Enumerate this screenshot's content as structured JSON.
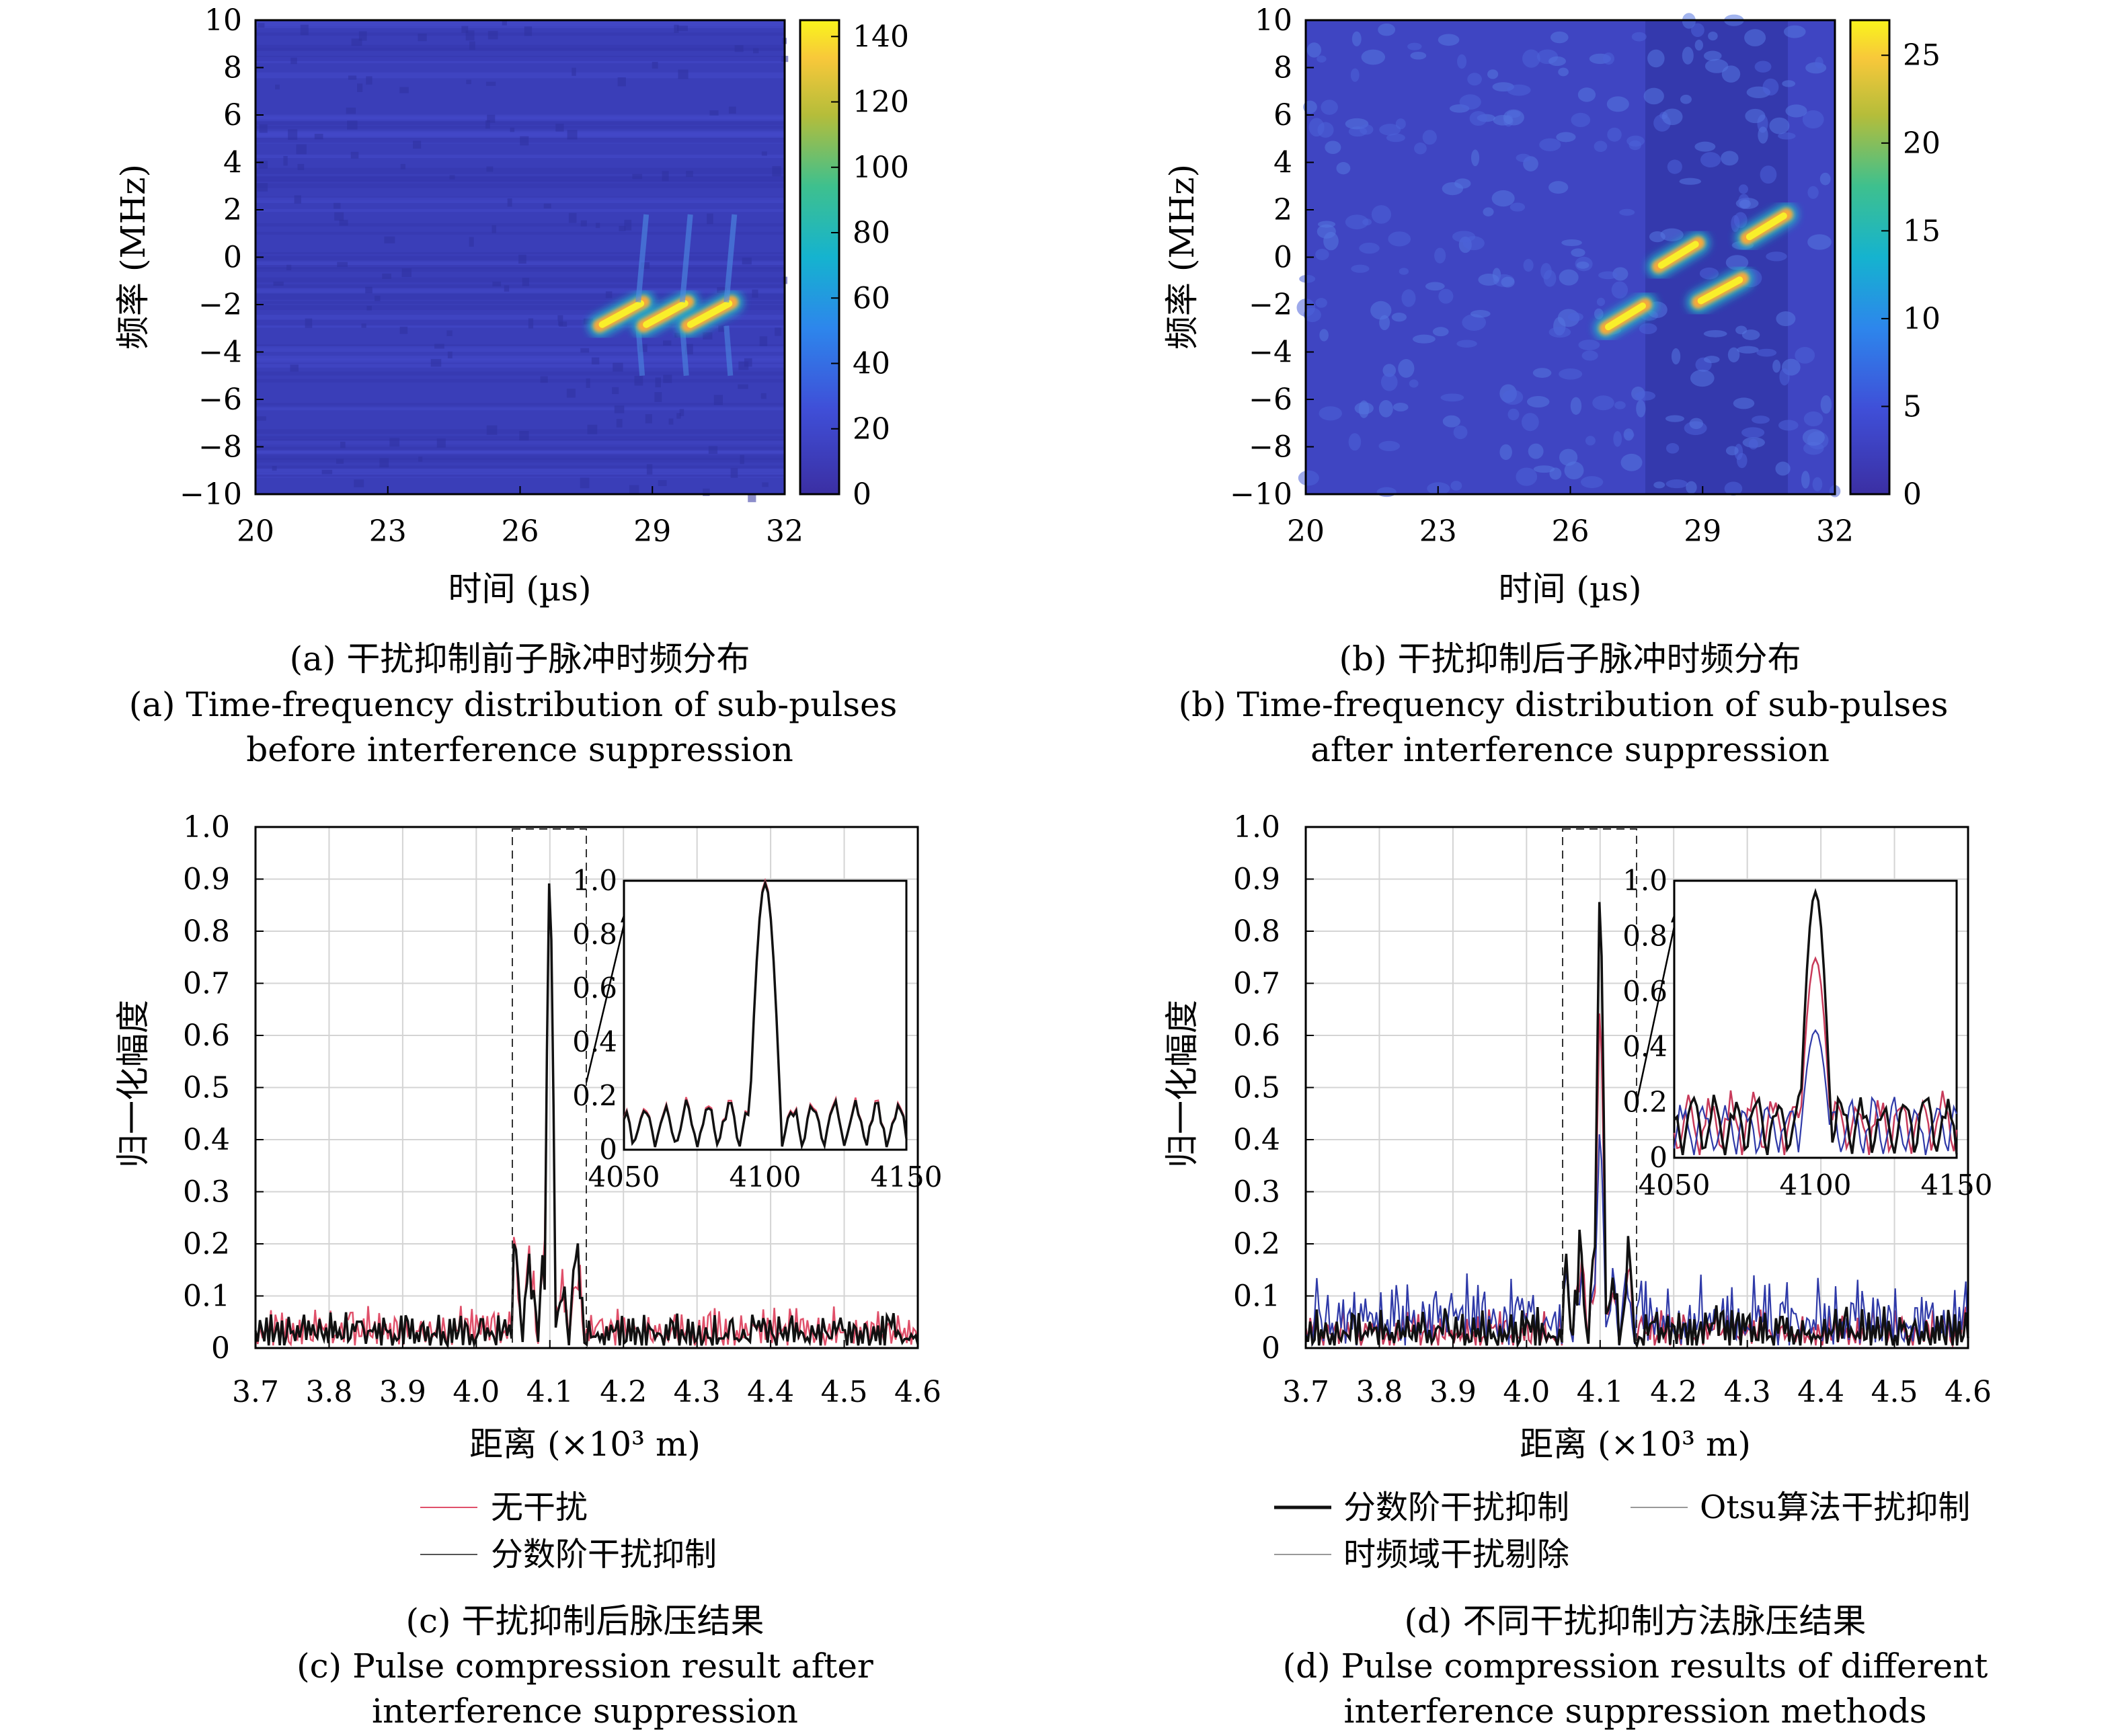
{
  "colors": {
    "heatmap_low": "#3b3cc0",
    "heatmap_high": "#f9e82c",
    "no_interference": "#e0506a",
    "fractional_suppression": "#111111",
    "otsu_suppression": "#c83a5a",
    "tf_removal": "#2f3aa8"
  },
  "chart_data": [
    {
      "type": "heatmap",
      "ylabel": "频率 (MHz)",
      "xlabel": "时间 (µs)",
      "x_ticks": [
        "20",
        "23",
        "26",
        "29",
        "32"
      ],
      "y_ticks": [
        "10",
        "8",
        "6",
        "4",
        "2",
        "0",
        "−2",
        "−4",
        "−6",
        "−8",
        "−10"
      ],
      "xlim": [
        20,
        32
      ],
      "ylim": [
        -10,
        10
      ],
      "colorbar": {
        "range": [
          0,
          145
        ],
        "ticks": [
          "0",
          "20",
          "40",
          "60",
          "80",
          "100",
          "120",
          "140"
        ]
      },
      "blobs": [
        {
          "x": [
            27.8,
            28.8
          ],
          "y": [
            -2.9,
            -1.9
          ],
          "value": 145
        },
        {
          "x": [
            28.8,
            29.8
          ],
          "y": [
            -2.9,
            -1.9
          ],
          "value": 145
        },
        {
          "x": [
            29.8,
            30.8
          ],
          "y": [
            -2.9,
            -1.9
          ],
          "value": 145
        }
      ],
      "caption_cn": "(a) 干扰抑制前子脉冲时频分布",
      "caption_en_1": "(a) Time-frequency distribution of sub-pulses",
      "caption_en_2": "before interference suppression"
    },
    {
      "type": "heatmap",
      "ylabel": "频率 (MHz)",
      "xlabel": "时间 (µs)",
      "x_ticks": [
        "20",
        "23",
        "26",
        "29",
        "32"
      ],
      "y_ticks": [
        "10",
        "8",
        "6",
        "4",
        "2",
        "0",
        "−2",
        "−4",
        "−6",
        "−8",
        "−10"
      ],
      "xlim": [
        20,
        32
      ],
      "ylim": [
        -10,
        10
      ],
      "colorbar": {
        "range": [
          0,
          27
        ],
        "ticks": [
          "0",
          "5",
          "10",
          "15",
          "20",
          "25"
        ]
      },
      "blobs": [
        {
          "x": [
            26.8,
            27.7
          ],
          "y": [
            -3.0,
            -2.0
          ],
          "value": 27
        },
        {
          "x": [
            28.0,
            28.9
          ],
          "y": [
            -0.4,
            0.6
          ],
          "value": 27
        },
        {
          "x": [
            28.9,
            29.9
          ],
          "y": [
            -1.9,
            -0.9
          ],
          "value": 27
        },
        {
          "x": [
            30.0,
            30.9
          ],
          "y": [
            0.8,
            1.8
          ],
          "value": 27
        }
      ],
      "caption_cn": "(b) 干扰抑制后子脉冲时频分布",
      "caption_en_1": "(b) Time-frequency distribution of sub-pulses",
      "caption_en_2": "after interference suppression"
    },
    {
      "type": "line",
      "ylabel": "归一化幅度",
      "xlabel": "距离 (×10³ m)",
      "x_ticks": [
        "3.7",
        "3.8",
        "3.9",
        "4.0",
        "4.1",
        "4.2",
        "4.3",
        "4.4",
        "4.5",
        "4.6"
      ],
      "y_ticks": [
        "0",
        "0.1",
        "0.2",
        "0.3",
        "0.4",
        "0.5",
        "0.6",
        "0.7",
        "0.8",
        "0.9",
        "1.0"
      ],
      "xlim": [
        3.7,
        4.6
      ],
      "ylim": [
        0,
        1.0
      ],
      "series": [
        {
          "name": "无干扰",
          "peak_x": 4.1,
          "peak_y": 1.0,
          "sidelobe_max": 0.23
        },
        {
          "name": "分数阶干扰抑制",
          "peak_x": 4.1,
          "peak_y": 1.0,
          "sidelobe_max": 0.23
        }
      ],
      "inset": {
        "xlim": [
          4050,
          4150
        ],
        "ylim": [
          0,
          1.0
        ],
        "x_ticks": [
          "4050",
          "4100",
          "4150"
        ],
        "y_ticks": [
          "0",
          "0.2",
          "0.4",
          "0.6",
          "0.8",
          "1.0"
        ]
      },
      "caption_cn": "(c) 干扰抑制后脉压结果",
      "caption_en_1": "(c) Pulse compression result after",
      "caption_en_2": "interference suppression"
    },
    {
      "type": "line",
      "ylabel": "归一化幅度",
      "xlabel": "距离 (×10³ m)",
      "x_ticks": [
        "3.7",
        "3.8",
        "3.9",
        "4.0",
        "4.1",
        "4.2",
        "4.3",
        "4.4",
        "4.5",
        "4.6"
      ],
      "y_ticks": [
        "0",
        "0.1",
        "0.2",
        "0.3",
        "0.4",
        "0.5",
        "0.6",
        "0.7",
        "0.8",
        "0.9",
        "1.0"
      ],
      "xlim": [
        3.7,
        4.6
      ],
      "ylim": [
        0,
        1.0
      ],
      "series": [
        {
          "name": "分数阶干扰抑制",
          "peak_x": 4.1,
          "peak_y": 0.96
        },
        {
          "name": "Otsu算法干扰抑制",
          "peak_x": 4.1,
          "peak_y": 0.72
        },
        {
          "name": "时频域干扰剔除",
          "peak_x": 4.1,
          "peak_y": 0.46
        }
      ],
      "inset": {
        "xlim": [
          4050,
          4150
        ],
        "ylim": [
          0,
          1.0
        ],
        "x_ticks": [
          "4050",
          "4100",
          "4150"
        ],
        "y_ticks": [
          "0",
          "0.2",
          "0.4",
          "0.6",
          "0.8",
          "1.0"
        ]
      },
      "caption_cn": "(d) 不同干扰抑制方法脉压结果",
      "caption_en_1": "(d) Pulse compression results of different",
      "caption_en_2": "interference suppression methods"
    }
  ]
}
